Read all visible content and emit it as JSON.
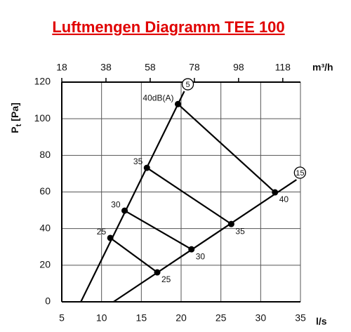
{
  "chart_data": {
    "type": "line",
    "title": "Luftmengen Diagramm TEE 100",
    "ylabel": {
      "main": "P",
      "sub": "t",
      "unit": "[Pa]"
    },
    "xlabel": "l/s",
    "x2label": "m³/h",
    "xlim": [
      5,
      35
    ],
    "xticks": [
      5,
      10,
      15,
      20,
      25,
      30,
      35
    ],
    "x2lim": [
      18,
      126
    ],
    "x2ticks": [
      18,
      38,
      58,
      78,
      98,
      118
    ],
    "ylim": [
      0,
      120
    ],
    "yticks": [
      0,
      20,
      40,
      60,
      80,
      100,
      120
    ],
    "grid": true,
    "series": [
      {
        "name": "5",
        "color": "#000000",
        "x": [
          7.4,
          20.4
        ],
        "values": [
          0,
          115
        ]
      },
      {
        "name": "15",
        "color": "#000000",
        "x": [
          11.5,
          34.5
        ],
        "values": [
          0,
          66.7
        ]
      },
      {
        "color": "#000000",
        "x": [
          11.1,
          17.0
        ],
        "values": [
          34.9,
          16.1
        ],
        "labels": [
          "25",
          "25"
        ]
      },
      {
        "color": "#000000",
        "x": [
          12.9,
          21.3
        ],
        "values": [
          49.8,
          28.7
        ],
        "labels": [
          "30",
          "30"
        ]
      },
      {
        "color": "#000000",
        "x": [
          15.7,
          26.3
        ],
        "values": [
          73.2,
          42.5
        ],
        "labels": [
          "35",
          "35"
        ]
      },
      {
        "color": "#000000",
        "x": [
          19.6,
          31.8
        ],
        "values": [
          108,
          59.8
        ],
        "labels": [
          "40dB(A)",
          "40"
        ]
      }
    ]
  }
}
